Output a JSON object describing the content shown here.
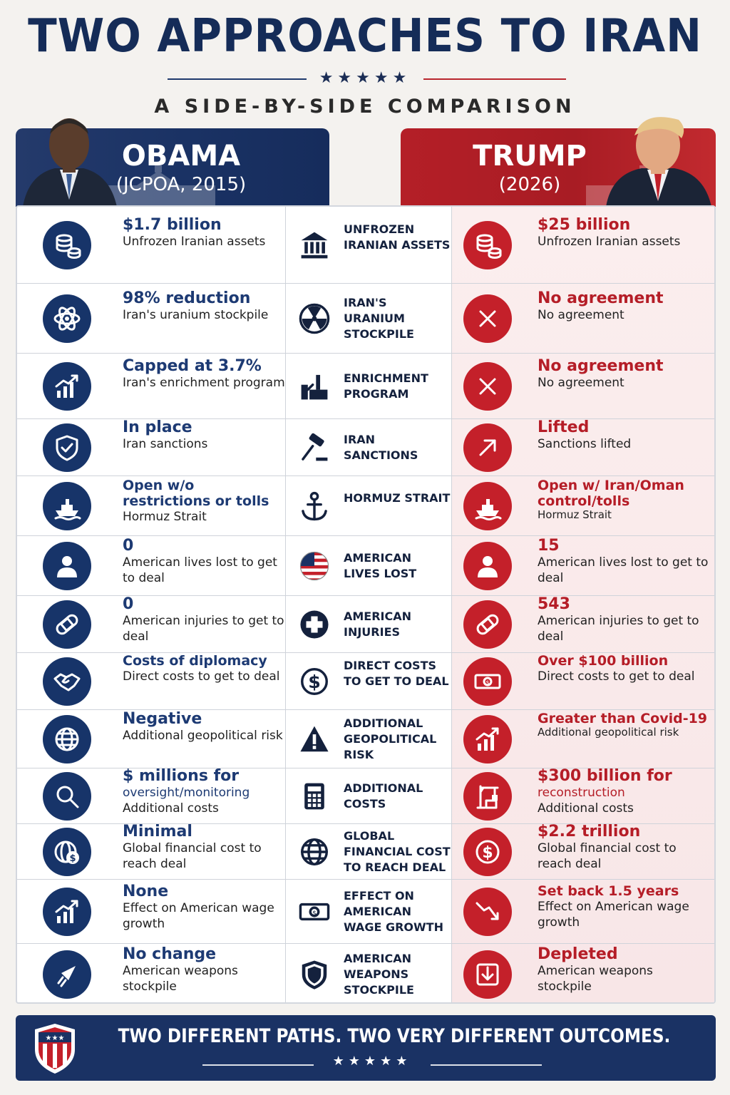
{
  "title": "TWO APPROACHES TO IRAN",
  "title_stars": "★★★★★",
  "subtitle": "A SIDE-BY-SIDE COMPARISON",
  "left_header": {
    "name": "OBAMA",
    "sub": "(JCPOA, 2015)",
    "color": "#1a3264"
  },
  "right_header": {
    "name": "TRUMP",
    "sub": "(2026)",
    "color": "#b41f27"
  },
  "rows": [
    {
      "obama_value": "$1.7 billion",
      "obama_desc": "Unfrozen Iranian assets",
      "obama_icon": "coins-icon",
      "category": "UNFROZEN IRANIAN ASSETS",
      "category_icon": "bank-icon",
      "trump_value": "$25 billion",
      "trump_desc": "Unfrozen Iranian assets",
      "trump_icon": "coins-icon"
    },
    {
      "obama_value": "98% reduction",
      "obama_desc": "Iran's uranium stockpile",
      "obama_icon": "atom-icon",
      "category": "IRAN'S URANIUM STOCKPILE",
      "category_icon": "radiation-icon",
      "trump_value": "No agreement",
      "trump_desc": "No agreement",
      "trump_icon": "x-icon"
    },
    {
      "obama_value": "Capped at 3.7%",
      "obama_desc": "Iran's enrichment program",
      "obama_icon": "chart-up-icon",
      "category": "ENRICHMENT PROGRAM",
      "category_icon": "factory-icon",
      "trump_value": "No agreement",
      "trump_desc": "No agreement",
      "trump_icon": "x-icon"
    },
    {
      "obama_value": "In place",
      "obama_desc": "Iran sanctions",
      "obama_icon": "shield-check-icon",
      "category": "IRAN SANCTIONS",
      "category_icon": "gavel-icon",
      "trump_value": "Lifted",
      "trump_desc": "Sanctions lifted",
      "trump_icon": "arrow-up-right-icon"
    },
    {
      "obama_value": "Open w/o restrictions or tolls",
      "obama_desc": "Hormuz Strait",
      "obama_icon": "ship-icon",
      "category": "HORMUZ STRAIT",
      "category_icon": "anchor-icon",
      "trump_value": "Open w/ Iran/Oman control/tolls",
      "trump_desc": "Hormuz Strait",
      "trump_icon": "ship-icon"
    },
    {
      "obama_value": "0",
      "obama_desc": "American lives lost to get to deal",
      "obama_icon": "person-icon",
      "category": "AMERICAN LIVES LOST",
      "category_icon": "us-flag-icon",
      "trump_value": "15",
      "trump_desc": "American lives lost to get to deal",
      "trump_icon": "person-icon"
    },
    {
      "obama_value": "0",
      "obama_desc": "American injuries to get to deal",
      "obama_icon": "bandage-icon",
      "category": "AMERICAN INJURIES",
      "category_icon": "medical-cross-icon",
      "trump_value": "543",
      "trump_desc": "American injuries to get to deal",
      "trump_icon": "bandage-icon"
    },
    {
      "obama_value": "Costs of diplomacy",
      "obama_desc": "Direct costs to get to deal",
      "obama_icon": "handshake-icon",
      "category": "DIRECT COSTS TO GET TO DEAL",
      "category_icon": "dollar-circle-icon",
      "trump_value": "Over $100 billion",
      "trump_desc": "Direct costs to get to deal",
      "trump_icon": "banknote-icon"
    },
    {
      "obama_value": "Negative",
      "obama_desc": "Additional geopolitical risk",
      "obama_icon": "globe-icon",
      "category": "ADDITIONAL GEOPOLITICAL RISK",
      "category_icon": "warning-icon",
      "trump_value": "Greater than Covid-19",
      "trump_desc": "Additional geopolitical risk",
      "trump_icon": "chart-up-icon"
    },
    {
      "obama_value": "$ millions for",
      "obama_value2": "oversight/monitoring",
      "obama_desc": "Additional costs",
      "obama_icon": "magnifier-icon",
      "category": "ADDITIONAL COSTS",
      "category_icon": "calculator-icon",
      "trump_value": "$300 billion for",
      "trump_value2": "reconstruction",
      "trump_desc": "Additional costs",
      "trump_icon": "crane-icon"
    },
    {
      "obama_value": "Minimal",
      "obama_desc": "Global financial cost to reach deal",
      "obama_icon": "globe-dollar-icon",
      "category": "GLOBAL FINANCIAL COST TO REACH DEAL",
      "category_icon": "globe-icon",
      "trump_value": "$2.2 trillion",
      "trump_desc": "Global financial cost to reach deal",
      "trump_icon": "dollar-circle-icon"
    },
    {
      "obama_value": "None",
      "obama_desc": "Effect on American wage growth",
      "obama_icon": "chart-up-icon",
      "category": "EFFECT ON AMERICAN WAGE GROWTH",
      "category_icon": "banknote-icon",
      "trump_value": "Set back 1.5 years",
      "trump_desc": "Effect on American wage growth",
      "trump_icon": "chart-down-icon"
    },
    {
      "obama_value": "No change",
      "obama_desc": "American weapons stockpile",
      "obama_icon": "missile-icon",
      "category": "AMERICAN WEAPONS STOCKPILE",
      "category_icon": "shield-icon",
      "trump_value": "Depleted",
      "trump_desc": "American weapons stockpile",
      "trump_icon": "download-box-icon"
    }
  ],
  "footer": {
    "text": "TWO DIFFERENT PATHS. TWO VERY DIFFERENT OUTCOMES.",
    "stars": "★★★★★"
  },
  "colors": {
    "navy": "#173469",
    "red": "#c4202a"
  }
}
